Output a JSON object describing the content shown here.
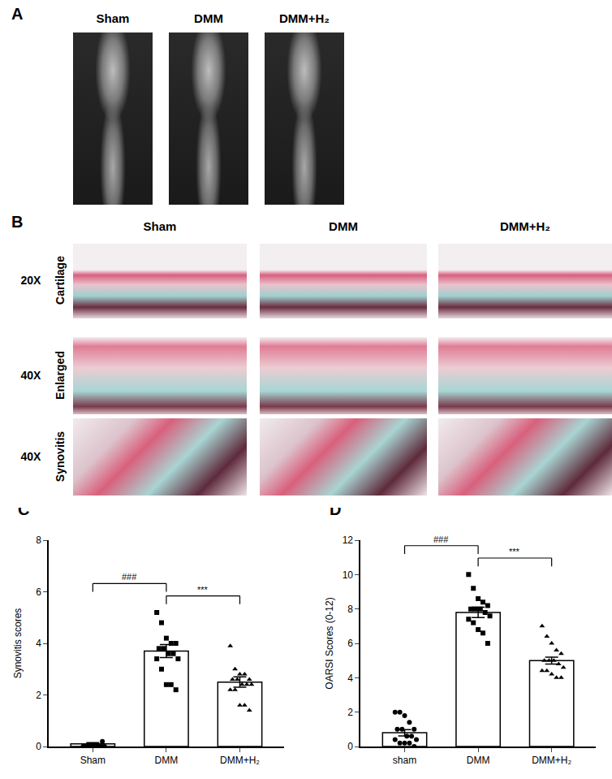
{
  "figure": {
    "A": {
      "label": "A",
      "columns": [
        "Sham",
        "DMM",
        "DMM+H₂"
      ]
    },
    "B": {
      "label": "B",
      "columns": [
        "Sham",
        "DMM",
        "DMM+H₂"
      ],
      "rows": [
        {
          "magnification": "20X",
          "name": "Cartilage"
        },
        {
          "magnification": "40X",
          "name": "Enlarged"
        },
        {
          "magnification": "40X",
          "name": "Synovitis"
        }
      ]
    }
  },
  "chart_data": [
    {
      "panel": "C",
      "type": "bar",
      "categories": [
        "Sham",
        "DMM",
        "DMM+H₂"
      ],
      "values": [
        0.1,
        3.7,
        2.5
      ],
      "errors": [
        0.05,
        0.25,
        0.2
      ],
      "color": "#000000",
      "points": [
        {
          "category": "Sham",
          "marker": "circle",
          "values": [
            0,
            0,
            0,
            0,
            0,
            0,
            0,
            0,
            0,
            0,
            0,
            0,
            0,
            0,
            0.2
          ]
        },
        {
          "category": "DMM",
          "marker": "square",
          "values": [
            5.2,
            4.8,
            4.2,
            4.0,
            4.0,
            3.8,
            3.8,
            3.6,
            3.6,
            3.4,
            3.4,
            3.0,
            2.4,
            2.4,
            2.2
          ]
        },
        {
          "category": "DMM+H₂",
          "marker": "triangle-up",
          "values": [
            3.9,
            3.0,
            2.8,
            2.8,
            2.6,
            2.6,
            2.6,
            2.4,
            2.4,
            2.4,
            2.2,
            2.2,
            1.6,
            1.6,
            1.4
          ]
        }
      ],
      "ylabel": "Synovitis scores",
      "ylim": [
        0,
        8
      ],
      "yticks": [
        0,
        2,
        4,
        6,
        8
      ],
      "grid": false,
      "annotations": [
        {
          "from": "Sham",
          "to": "DMM",
          "text": "###"
        },
        {
          "from": "DMM",
          "to": "DMM+H₂",
          "text": "***"
        }
      ]
    },
    {
      "panel": "D",
      "type": "bar",
      "categories": [
        "sham",
        "DMM",
        "DMM+H₂"
      ],
      "values": [
        0.8,
        7.8,
        5.0
      ],
      "errors": [
        0.18,
        0.3,
        0.2
      ],
      "color": "#000000",
      "points": [
        {
          "category": "sham",
          "marker": "circle",
          "values": [
            2,
            2,
            1.8,
            1.4,
            1,
            1,
            1,
            0.6,
            0.6,
            0.4,
            0.4,
            0.2,
            0.2,
            0.2,
            0
          ]
        },
        {
          "category": "DMM",
          "marker": "square",
          "values": [
            10,
            9.2,
            8.6,
            8.4,
            8.2,
            8,
            8,
            8,
            7.8,
            7.6,
            7.4,
            7.2,
            6.8,
            6.6,
            6
          ]
        },
        {
          "category": "DMM+H₂",
          "marker": "triangle-up",
          "values": [
            7,
            6.4,
            6,
            5.6,
            5.4,
            5,
            5,
            5,
            4.8,
            4.6,
            4.4,
            4.4,
            4.2,
            4,
            4
          ]
        }
      ],
      "ylabel": "OARSI Scores (0-12)",
      "ylim": [
        0,
        12
      ],
      "yticks": [
        0,
        2,
        4,
        6,
        8,
        10,
        12
      ],
      "grid": false,
      "annotations": [
        {
          "from": "sham",
          "to": "DMM",
          "text": "###"
        },
        {
          "from": "DMM",
          "to": "DMM+H₂",
          "text": "***"
        }
      ]
    }
  ]
}
